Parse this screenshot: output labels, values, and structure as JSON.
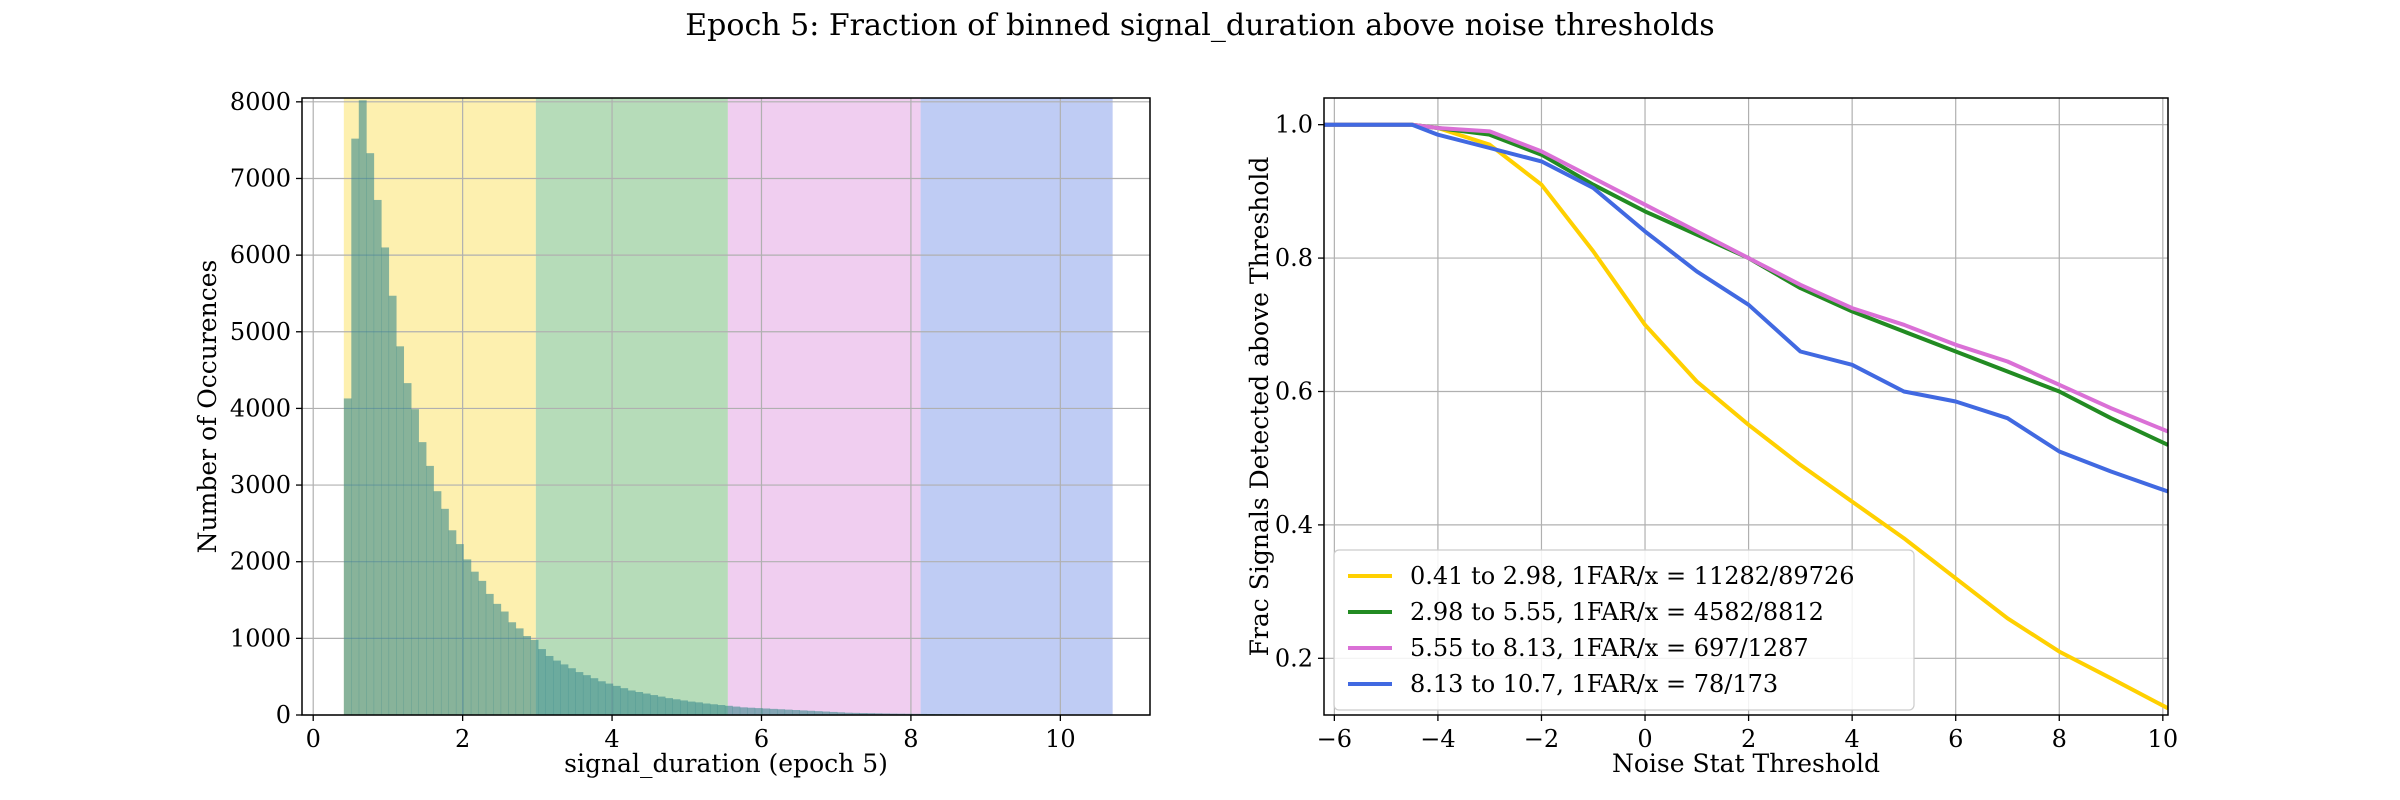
{
  "figure": {
    "title": "Epoch 5: Fraction of binned signal_duration above noise thresholds"
  },
  "chart_data": [
    {
      "type": "bar",
      "subtype": "histogram",
      "xlabel": "signal_duration (epoch 5)",
      "ylabel": "Number of Occurences",
      "xlim": [
        -0.15,
        11.2
      ],
      "ylim": [
        0,
        8050
      ],
      "xticks": [
        0,
        2,
        4,
        6,
        8,
        10
      ],
      "yticks": [
        0,
        1000,
        2000,
        3000,
        4000,
        5000,
        6000,
        7000,
        8000
      ],
      "grid": true,
      "bin_start": 0.41,
      "bin_width": 0.1,
      "values": [
        4130,
        7520,
        8020,
        7330,
        6720,
        6100,
        5470,
        4810,
        4330,
        3990,
        3560,
        3250,
        2920,
        2690,
        2410,
        2230,
        2030,
        1870,
        1750,
        1580,
        1450,
        1350,
        1210,
        1130,
        1030,
        980,
        860,
        770,
        710,
        660,
        610,
        560,
        520,
        480,
        440,
        410,
        380,
        350,
        320,
        300,
        280,
        260,
        240,
        220,
        205,
        190,
        175,
        165,
        150,
        140,
        130,
        120,
        110,
        100,
        95,
        90,
        85,
        80,
        75,
        70,
        65,
        60,
        55,
        50,
        45,
        40,
        35,
        30,
        28,
        26,
        24,
        22,
        20,
        18,
        17,
        16,
        15,
        14,
        13,
        12,
        11,
        10,
        9,
        8,
        7,
        6,
        5,
        4,
        3,
        2
      ],
      "bands": [
        {
          "from": 0.41,
          "to": 2.98,
          "color": "#fce67a"
        },
        {
          "from": 2.98,
          "to": 5.55,
          "color": "#86c48a"
        },
        {
          "from": 5.55,
          "to": 8.13,
          "color": "#e6ade6"
        },
        {
          "from": 8.13,
          "to": 10.7,
          "color": "#94aaec"
        }
      ],
      "bar_color": "#3a8a8c"
    },
    {
      "type": "line",
      "xlabel": "Noise Stat Threshold",
      "ylabel": "Frac Signals Detected above Threshold",
      "xlim": [
        -6.2,
        10.1
      ],
      "ylim": [
        0.115,
        1.04
      ],
      "xticks": [
        -6,
        -4,
        -2,
        0,
        2,
        4,
        6,
        8,
        10
      ],
      "yticks": [
        0.2,
        0.4,
        0.6,
        0.8,
        1.0
      ],
      "grid": true,
      "legend_position": "bottom-left",
      "series": [
        {
          "name": "0.41 to 2.98, 1FAR/x = 11282/89726",
          "color": "#ffd000",
          "points": [
            [
              -6.2,
              1.0
            ],
            [
              -4.5,
              1.0
            ],
            [
              -4.0,
              0.995
            ],
            [
              -3.0,
              0.97
            ],
            [
              -2.0,
              0.91
            ],
            [
              -1.0,
              0.81
            ],
            [
              0.0,
              0.7
            ],
            [
              1.0,
              0.615
            ],
            [
              2.0,
              0.55
            ],
            [
              3.0,
              0.49
            ],
            [
              4.0,
              0.435
            ],
            [
              5.0,
              0.38
            ],
            [
              6.0,
              0.32
            ],
            [
              7.0,
              0.26
            ],
            [
              8.0,
              0.21
            ],
            [
              9.0,
              0.17
            ],
            [
              10.1,
              0.125
            ]
          ]
        },
        {
          "name": "2.98 to 5.55, 1FAR/x = 4582/8812",
          "color": "#228b22",
          "points": [
            [
              -6.2,
              1.0
            ],
            [
              -4.5,
              1.0
            ],
            [
              -4.0,
              0.995
            ],
            [
              -3.0,
              0.985
            ],
            [
              -2.0,
              0.955
            ],
            [
              -1.0,
              0.91
            ],
            [
              0.0,
              0.87
            ],
            [
              1.0,
              0.835
            ],
            [
              2.0,
              0.8
            ],
            [
              3.0,
              0.755
            ],
            [
              4.0,
              0.72
            ],
            [
              5.0,
              0.69
            ],
            [
              6.0,
              0.66
            ],
            [
              7.0,
              0.63
            ],
            [
              8.0,
              0.6
            ],
            [
              9.0,
              0.56
            ],
            [
              10.1,
              0.52
            ]
          ]
        },
        {
          "name": "5.55 to 8.13, 1FAR/x = 697/1287",
          "color": "#da70d6",
          "points": [
            [
              -6.2,
              1.0
            ],
            [
              -4.5,
              1.0
            ],
            [
              -4.0,
              0.995
            ],
            [
              -3.0,
              0.99
            ],
            [
              -2.0,
              0.96
            ],
            [
              -1.0,
              0.92
            ],
            [
              0.0,
              0.88
            ],
            [
              1.0,
              0.84
            ],
            [
              2.0,
              0.8
            ],
            [
              3.0,
              0.76
            ],
            [
              4.0,
              0.725
            ],
            [
              5.0,
              0.7
            ],
            [
              6.0,
              0.67
            ],
            [
              7.0,
              0.645
            ],
            [
              8.0,
              0.61
            ],
            [
              9.0,
              0.575
            ],
            [
              10.1,
              0.54
            ]
          ]
        },
        {
          "name": "8.13 to 10.7, 1FAR/x = 78/173",
          "color": "#4169e1",
          "points": [
            [
              -6.2,
              1.0
            ],
            [
              -4.5,
              1.0
            ],
            [
              -4.0,
              0.985
            ],
            [
              -3.0,
              0.965
            ],
            [
              -2.0,
              0.945
            ],
            [
              -1.0,
              0.905
            ],
            [
              0.0,
              0.84
            ],
            [
              1.0,
              0.78
            ],
            [
              2.0,
              0.73
            ],
            [
              3.0,
              0.66
            ],
            [
              4.0,
              0.64
            ],
            [
              5.0,
              0.6
            ],
            [
              6.0,
              0.585
            ],
            [
              7.0,
              0.56
            ],
            [
              8.0,
              0.51
            ],
            [
              9.0,
              0.48
            ],
            [
              10.1,
              0.45
            ]
          ]
        }
      ]
    }
  ]
}
